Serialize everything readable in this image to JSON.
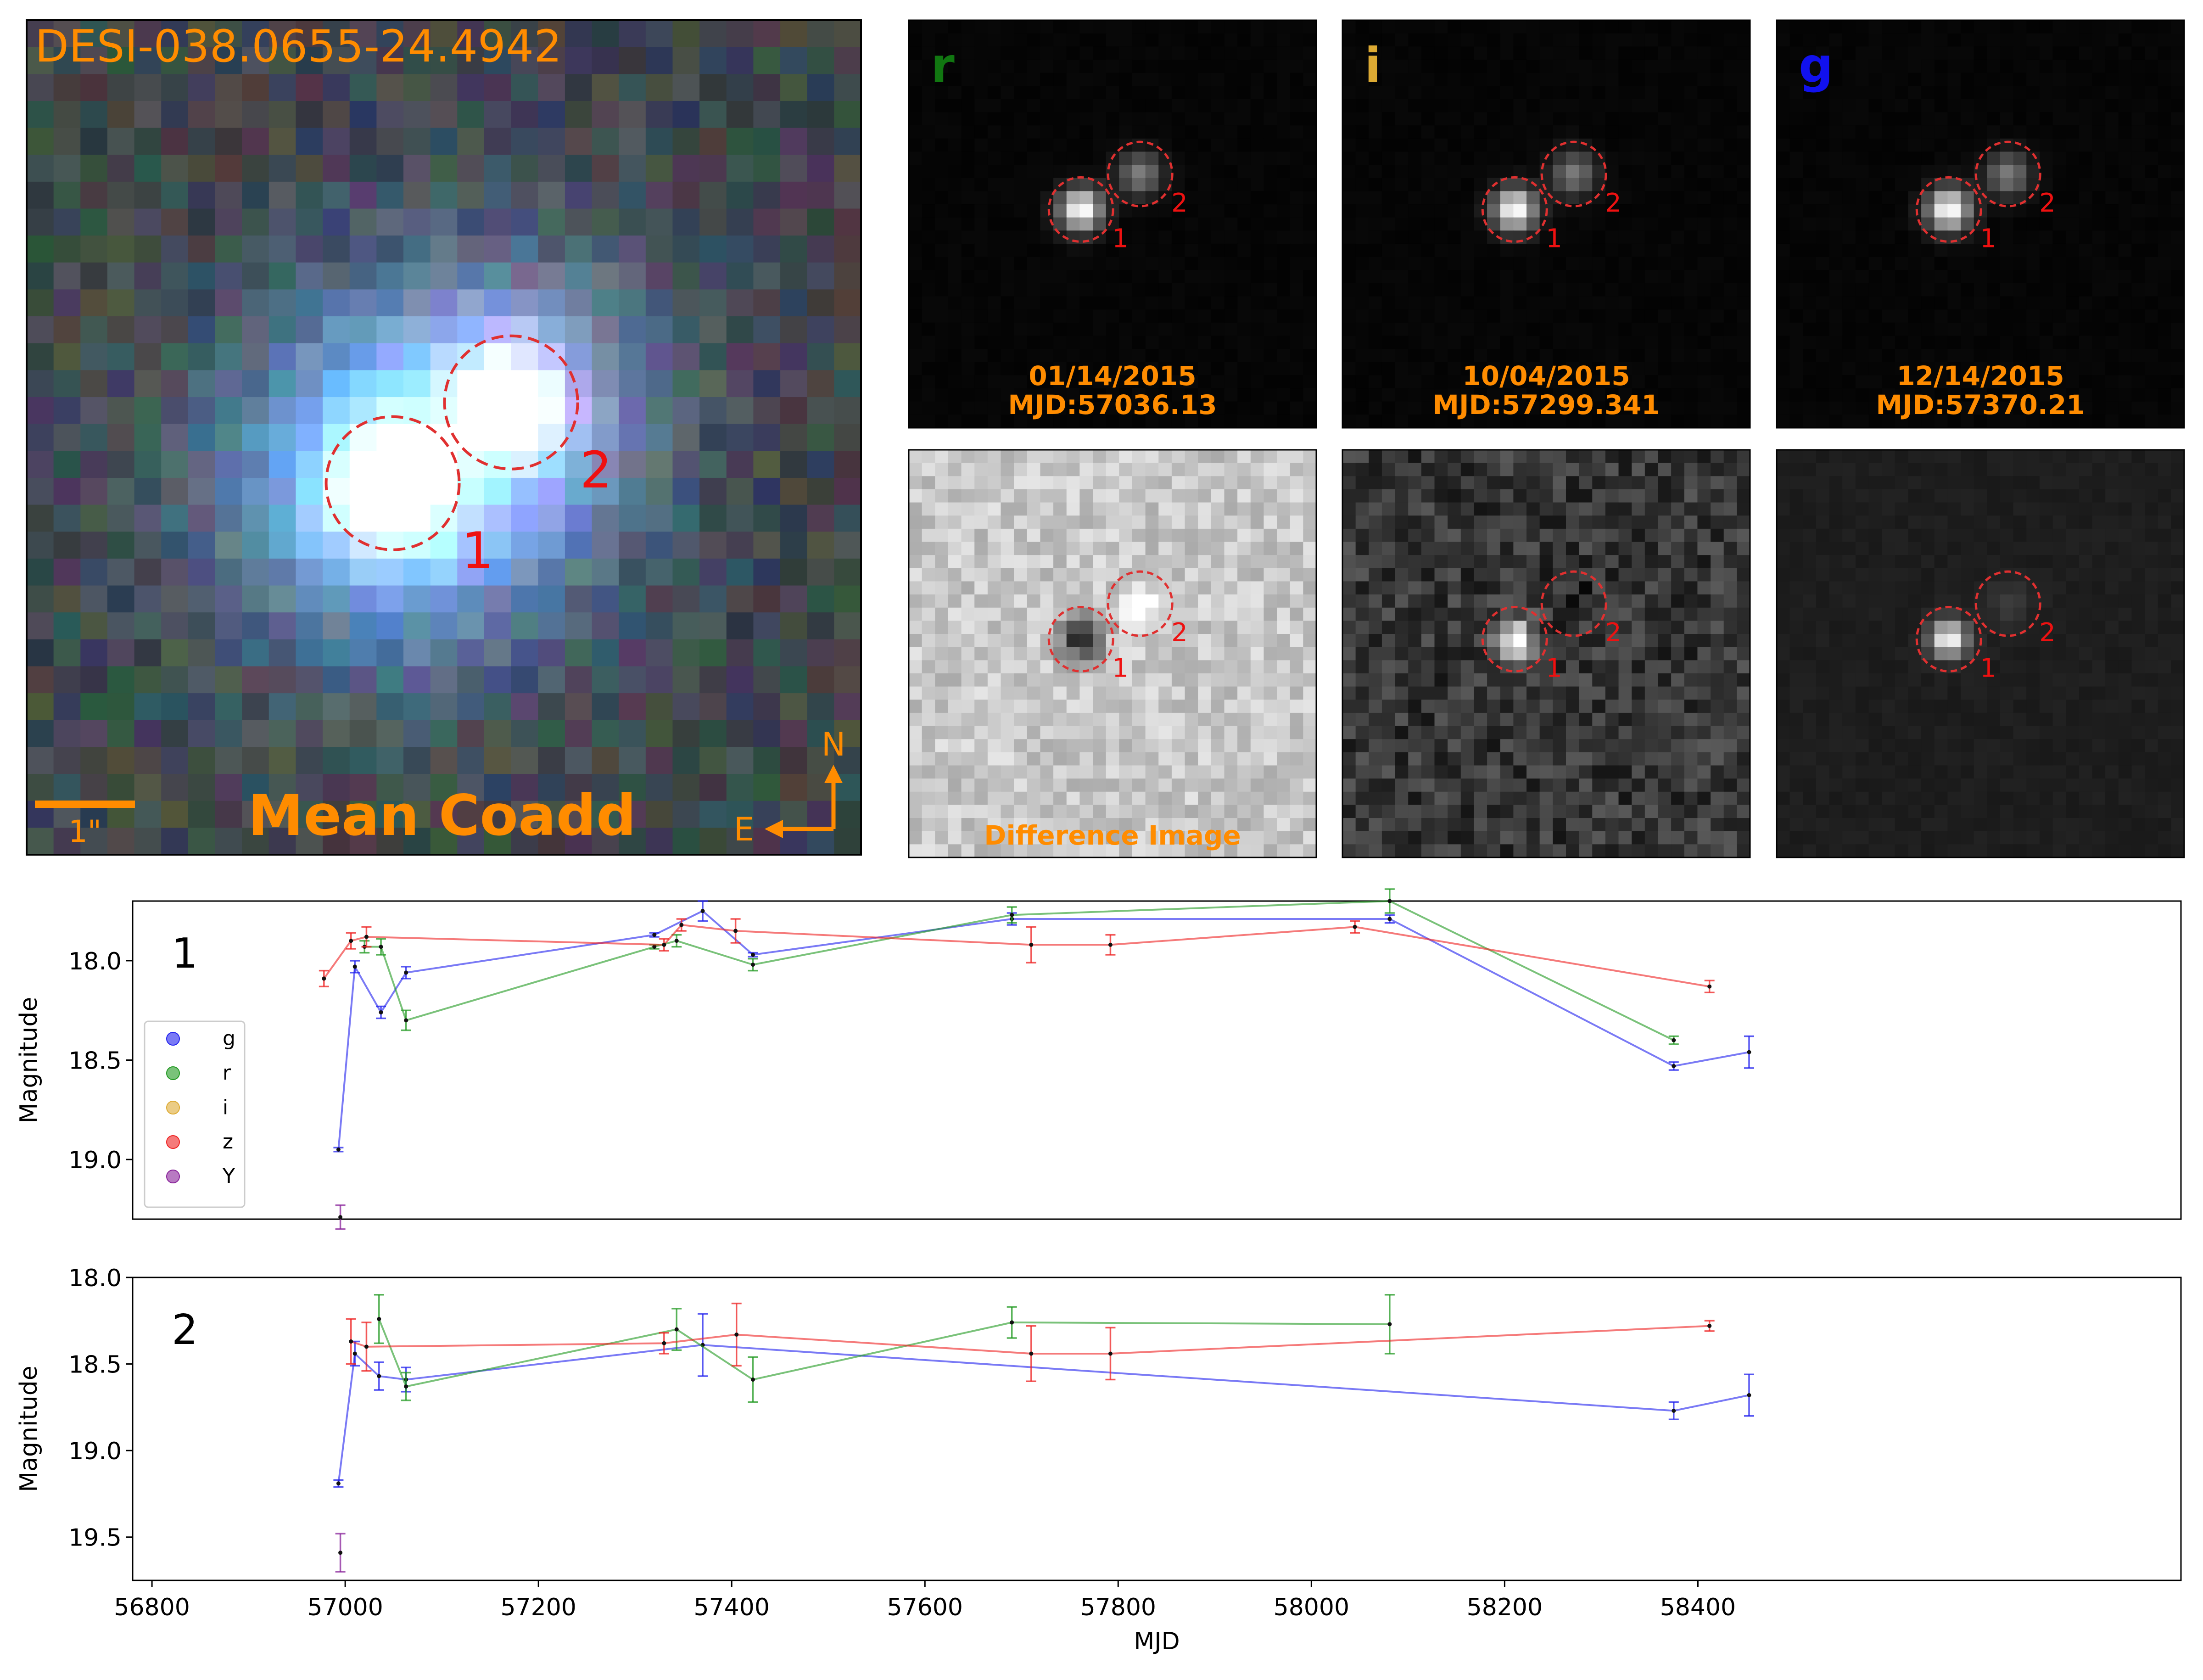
{
  "colors": {
    "orange": "#ff8c00",
    "circle": "#e03030",
    "g": "#2222ee",
    "r": "#229922",
    "i": "#ddaa33",
    "z": "#ee2222",
    "Y": "#882299"
  },
  "coadd": {
    "object_name": "DESI-038.0655-24.4942",
    "title": "Mean Coadd",
    "scale_label": "1\"",
    "compass_n": "N",
    "compass_e": "E",
    "circle_labels": [
      "1",
      "2"
    ]
  },
  "cutouts": [
    {
      "band": "r",
      "band_color": "#117711",
      "date": "01/14/2015",
      "mjd": "MJD:57036.13"
    },
    {
      "band": "i",
      "band_color": "#ddaa33",
      "date": "10/04/2015",
      "mjd": "MJD:57299.341"
    },
    {
      "band": "g",
      "band_color": "#1111ee",
      "date": "12/14/2015",
      "mjd": "MJD:57370.21"
    }
  ],
  "difference_label": "Difference Image",
  "cutout_circle_labels": [
    "1",
    "2"
  ],
  "chart_data": [
    {
      "type": "line",
      "panel_label": "1",
      "title": "",
      "xlabel": "",
      "ylabel": "Magnitude",
      "xlim": [
        56780,
        58900
      ],
      "ylim": [
        19.3,
        17.7
      ],
      "yticks": [
        18.0,
        18.5,
        19.0
      ],
      "yticklabels": [
        "18.0",
        "18.5",
        "19.0"
      ],
      "legend": {
        "placement": "lower-left",
        "entries": [
          "g",
          "r",
          "i",
          "z",
          "Y"
        ]
      },
      "series": [
        {
          "name": "g",
          "x": [
            56993,
            57010,
            57037,
            57063,
            57320,
            57370,
            57422,
            57690,
            58081,
            58375,
            58453
          ],
          "y": [
            18.95,
            18.03,
            18.26,
            18.06,
            17.87,
            17.75,
            17.97,
            17.79,
            17.79,
            18.53,
            18.46
          ],
          "err": [
            0.01,
            0.03,
            0.03,
            0.03,
            0.01,
            0.05,
            0.01,
            0.03,
            0.02,
            0.02,
            0.08
          ]
        },
        {
          "name": "r",
          "x": [
            57020,
            57037,
            57063,
            57320,
            57343,
            57422,
            57690,
            58081,
            58375
          ],
          "y": [
            17.93,
            17.93,
            18.3,
            17.93,
            17.9,
            18.02,
            17.77,
            17.7,
            18.4
          ],
          "err": [
            0.03,
            0.04,
            0.05,
            0.01,
            0.03,
            0.03,
            0.04,
            0.06,
            0.02
          ]
        },
        {
          "name": "i",
          "x": [],
          "y": [],
          "err": []
        },
        {
          "name": "z",
          "x": [
            56978,
            57006,
            57022,
            57330,
            57348,
            57404,
            57710,
            57792,
            58045,
            58412
          ],
          "y": [
            18.09,
            17.9,
            17.88,
            17.92,
            17.82,
            17.85,
            17.92,
            17.92,
            17.83,
            18.13
          ],
          "err": [
            0.04,
            0.04,
            0.05,
            0.03,
            0.03,
            0.06,
            0.09,
            0.05,
            0.03,
            0.03
          ]
        },
        {
          "name": "Y",
          "x": [
            56995
          ],
          "y": [
            19.29
          ],
          "err": [
            0.06
          ]
        }
      ]
    },
    {
      "type": "line",
      "panel_label": "2",
      "title": "",
      "xlabel": "MJD",
      "ylabel": "Magnitude",
      "xlim": [
        56780,
        58900
      ],
      "ylim": [
        19.75,
        18.0
      ],
      "yticks": [
        18.0,
        18.5,
        19.0,
        19.5
      ],
      "yticklabels": [
        "18.0",
        "18.5",
        "19.0",
        "19.5"
      ],
      "xticks": [
        56800,
        57000,
        57200,
        57400,
        57600,
        57800,
        58000,
        58200,
        58400
      ],
      "xticklabels": [
        "56800",
        "57000",
        "57200",
        "57400",
        "57600",
        "57800",
        "58000",
        "58200",
        "58400"
      ],
      "series": [
        {
          "name": "g",
          "x": [
            56993,
            57010,
            57035,
            57063,
            57370,
            58375,
            58453
          ],
          "y": [
            19.19,
            18.44,
            18.57,
            18.59,
            18.39,
            18.77,
            18.68
          ],
          "err": [
            0.02,
            0.07,
            0.08,
            0.07,
            0.18,
            0.05,
            0.12
          ]
        },
        {
          "name": "r",
          "x": [
            57035,
            57063,
            57343,
            57422,
            57690,
            58081
          ],
          "y": [
            18.24,
            18.63,
            18.3,
            18.59,
            18.26,
            18.27
          ],
          "err": [
            0.14,
            0.08,
            0.12,
            0.13,
            0.09,
            0.17
          ]
        },
        {
          "name": "i",
          "x": [],
          "y": [],
          "err": []
        },
        {
          "name": "z",
          "x": [
            57006,
            57022,
            57330,
            57405,
            57710,
            57792,
            58412
          ],
          "y": [
            18.37,
            18.4,
            18.38,
            18.33,
            18.44,
            18.44,
            18.28
          ],
          "err": [
            0.13,
            0.14,
            0.06,
            0.18,
            0.16,
            0.15,
            0.03
          ]
        },
        {
          "name": "Y",
          "x": [
            56995
          ],
          "y": [
            19.59
          ],
          "err": [
            0.11
          ]
        }
      ]
    }
  ]
}
